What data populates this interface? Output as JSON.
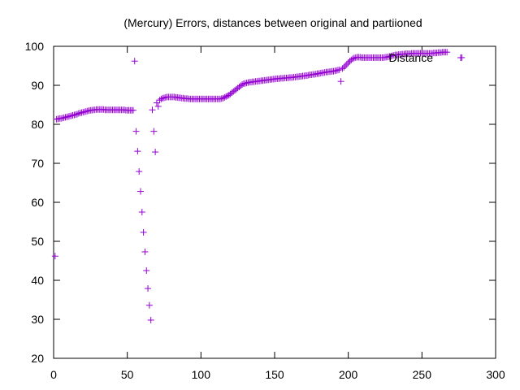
{
  "chart_data": {
    "type": "scatter",
    "title": "(Mercury) Errors, distances between original and partiioned",
    "xlabel": "",
    "ylabel": "",
    "xlim": [
      0,
      300
    ],
    "ylim": [
      20,
      100
    ],
    "xticks": [
      0,
      50,
      100,
      150,
      200,
      250,
      300
    ],
    "yticks": [
      20,
      30,
      40,
      50,
      60,
      70,
      80,
      90,
      100
    ],
    "legend_position": "top-right",
    "grid": false,
    "series": [
      {
        "name": "Distance",
        "color": "#9400d3",
        "marker": "plus",
        "points": [
          [
            1,
            46.2
          ],
          [
            2,
            81.3
          ],
          [
            3,
            81.4
          ],
          [
            4,
            81.5
          ],
          [
            5,
            81.5
          ],
          [
            6,
            81.6
          ],
          [
            7,
            81.7
          ],
          [
            8,
            81.8
          ],
          [
            9,
            81.9
          ],
          [
            10,
            82.0
          ],
          [
            11,
            82.1
          ],
          [
            12,
            82.2
          ],
          [
            13,
            82.3
          ],
          [
            14,
            82.4
          ],
          [
            15,
            82.5
          ],
          [
            16,
            82.6
          ],
          [
            17,
            82.8
          ],
          [
            18,
            82.9
          ],
          [
            19,
            83.0
          ],
          [
            20,
            83.1
          ],
          [
            21,
            83.2
          ],
          [
            22,
            83.3
          ],
          [
            23,
            83.4
          ],
          [
            24,
            83.5
          ],
          [
            25,
            83.6
          ],
          [
            26,
            83.6
          ],
          [
            27,
            83.7
          ],
          [
            28,
            83.7
          ],
          [
            29,
            83.8
          ],
          [
            30,
            83.8
          ],
          [
            31,
            83.8
          ],
          [
            32,
            83.8
          ],
          [
            33,
            83.8
          ],
          [
            34,
            83.8
          ],
          [
            35,
            83.7
          ],
          [
            36,
            83.7
          ],
          [
            37,
            83.7
          ],
          [
            38,
            83.7
          ],
          [
            39,
            83.7
          ],
          [
            40,
            83.7
          ],
          [
            41,
            83.7
          ],
          [
            42,
            83.7
          ],
          [
            43,
            83.7
          ],
          [
            44,
            83.7
          ],
          [
            45,
            83.7
          ],
          [
            46,
            83.7
          ],
          [
            47,
            83.7
          ],
          [
            48,
            83.7
          ],
          [
            49,
            83.6
          ],
          [
            50,
            83.6
          ],
          [
            51,
            83.6
          ],
          [
            52,
            83.6
          ],
          [
            53,
            83.6
          ],
          [
            54,
            83.6
          ],
          [
            55,
            96.2
          ],
          [
            56,
            78.2
          ],
          [
            57,
            73.1
          ],
          [
            58,
            67.9
          ],
          [
            59,
            62.8
          ],
          [
            60,
            57.5
          ],
          [
            61,
            52.3
          ],
          [
            62,
            47.3
          ],
          [
            63,
            42.5
          ],
          [
            64,
            37.9
          ],
          [
            65,
            33.6
          ],
          [
            66,
            29.8
          ],
          [
            67,
            83.7
          ],
          [
            68,
            78.2
          ],
          [
            69,
            72.9
          ],
          [
            70,
            85.5
          ],
          [
            71,
            84.6
          ],
          [
            72,
            86.2
          ],
          [
            73,
            86.5
          ],
          [
            74,
            86.7
          ],
          [
            75,
            86.8
          ],
          [
            76,
            86.9
          ],
          [
            77,
            87.0
          ],
          [
            78,
            87.0
          ],
          [
            79,
            87.0
          ],
          [
            80,
            87.0
          ],
          [
            81,
            87.0
          ],
          [
            82,
            87.0
          ],
          [
            83,
            86.9
          ],
          [
            84,
            86.9
          ],
          [
            85,
            86.8
          ],
          [
            86,
            86.8
          ],
          [
            87,
            86.7
          ],
          [
            88,
            86.7
          ],
          [
            89,
            86.6
          ],
          [
            90,
            86.6
          ],
          [
            91,
            86.6
          ],
          [
            92,
            86.5
          ],
          [
            93,
            86.5
          ],
          [
            94,
            86.5
          ],
          [
            95,
            86.5
          ],
          [
            96,
            86.5
          ],
          [
            97,
            86.5
          ],
          [
            98,
            86.5
          ],
          [
            99,
            86.5
          ],
          [
            100,
            86.5
          ],
          [
            101,
            86.5
          ],
          [
            102,
            86.5
          ],
          [
            103,
            86.5
          ],
          [
            104,
            86.5
          ],
          [
            105,
            86.5
          ],
          [
            106,
            86.5
          ],
          [
            107,
            86.5
          ],
          [
            108,
            86.5
          ],
          [
            109,
            86.5
          ],
          [
            110,
            86.5
          ],
          [
            111,
            86.5
          ],
          [
            112,
            86.5
          ],
          [
            113,
            86.5
          ],
          [
            114,
            86.6
          ],
          [
            115,
            86.7
          ],
          [
            116,
            86.9
          ],
          [
            117,
            87.1
          ],
          [
            118,
            87.3
          ],
          [
            119,
            87.5
          ],
          [
            120,
            87.8
          ],
          [
            121,
            88.1
          ],
          [
            122,
            88.4
          ],
          [
            123,
            88.7
          ],
          [
            124,
            89.0
          ],
          [
            125,
            89.3
          ],
          [
            126,
            89.6
          ],
          [
            127,
            89.9
          ],
          [
            128,
            90.2
          ],
          [
            129,
            90.4
          ],
          [
            130,
            90.5
          ],
          [
            131,
            90.6
          ],
          [
            132,
            90.7
          ],
          [
            133,
            90.8
          ],
          [
            134,
            90.8
          ],
          [
            135,
            90.9
          ],
          [
            136,
            90.9
          ],
          [
            137,
            91.0
          ],
          [
            138,
            91.0
          ],
          [
            139,
            91.1
          ],
          [
            140,
            91.1
          ],
          [
            141,
            91.2
          ],
          [
            142,
            91.2
          ],
          [
            143,
            91.3
          ],
          [
            144,
            91.3
          ],
          [
            145,
            91.4
          ],
          [
            146,
            91.4
          ],
          [
            147,
            91.5
          ],
          [
            148,
            91.5
          ],
          [
            149,
            91.6
          ],
          [
            150,
            91.6
          ],
          [
            151,
            91.7
          ],
          [
            152,
            91.7
          ],
          [
            153,
            91.7
          ],
          [
            154,
            91.8
          ],
          [
            155,
            91.8
          ],
          [
            156,
            91.8
          ],
          [
            157,
            91.9
          ],
          [
            158,
            91.9
          ],
          [
            159,
            91.9
          ],
          [
            160,
            92.0
          ],
          [
            161,
            92.0
          ],
          [
            162,
            92.0
          ],
          [
            163,
            92.1
          ],
          [
            164,
            92.1
          ],
          [
            165,
            92.2
          ],
          [
            166,
            92.2
          ],
          [
            167,
            92.3
          ],
          [
            168,
            92.3
          ],
          [
            169,
            92.4
          ],
          [
            170,
            92.4
          ],
          [
            171,
            92.5
          ],
          [
            172,
            92.5
          ],
          [
            173,
            92.6
          ],
          [
            174,
            92.7
          ],
          [
            175,
            92.7
          ],
          [
            176,
            92.8
          ],
          [
            177,
            92.8
          ],
          [
            178,
            92.9
          ],
          [
            179,
            93.0
          ],
          [
            180,
            93.0
          ],
          [
            181,
            93.1
          ],
          [
            182,
            93.2
          ],
          [
            183,
            93.2
          ],
          [
            184,
            93.3
          ],
          [
            185,
            93.4
          ],
          [
            186,
            93.4
          ],
          [
            187,
            93.5
          ],
          [
            188,
            93.5
          ],
          [
            189,
            93.6
          ],
          [
            190,
            93.6
          ],
          [
            191,
            93.7
          ],
          [
            192,
            93.8
          ],
          [
            193,
            93.9
          ],
          [
            194,
            94.0
          ],
          [
            195,
            91.0
          ],
          [
            196,
            94.3
          ],
          [
            197,
            94.6
          ],
          [
            198,
            95.0
          ],
          [
            199,
            95.4
          ],
          [
            200,
            95.8
          ],
          [
            201,
            96.2
          ],
          [
            202,
            96.5
          ],
          [
            203,
            96.8
          ],
          [
            204,
            97.0
          ],
          [
            205,
            97.1
          ],
          [
            206,
            97.2
          ],
          [
            207,
            97.2
          ],
          [
            208,
            97.2
          ],
          [
            209,
            97.1
          ],
          [
            210,
            97.1
          ],
          [
            211,
            97.1
          ],
          [
            212,
            97.1
          ],
          [
            213,
            97.1
          ],
          [
            214,
            97.1
          ],
          [
            215,
            97.1
          ],
          [
            216,
            97.1
          ],
          [
            217,
            97.1
          ],
          [
            218,
            97.1
          ],
          [
            219,
            97.1
          ],
          [
            220,
            97.1
          ],
          [
            221,
            97.1
          ],
          [
            222,
            97.1
          ],
          [
            223,
            97.1
          ],
          [
            224,
            97.1
          ],
          [
            225,
            97.2
          ],
          [
            226,
            97.2
          ],
          [
            227,
            97.3
          ],
          [
            228,
            97.4
          ],
          [
            229,
            97.5
          ],
          [
            230,
            97.6
          ],
          [
            231,
            97.7
          ],
          [
            232,
            97.8
          ],
          [
            233,
            97.8
          ],
          [
            234,
            97.9
          ],
          [
            235,
            97.9
          ],
          [
            236,
            98.0
          ],
          [
            237,
            98.0
          ],
          [
            238,
            98.0
          ],
          [
            239,
            98.1
          ],
          [
            240,
            98.1
          ],
          [
            241,
            98.1
          ],
          [
            242,
            98.1
          ],
          [
            243,
            98.2
          ],
          [
            244,
            98.2
          ],
          [
            245,
            98.2
          ],
          [
            246,
            98.2
          ],
          [
            247,
            98.2
          ],
          [
            248,
            98.2
          ],
          [
            249,
            98.2
          ],
          [
            250,
            98.2
          ],
          [
            251,
            98.2
          ],
          [
            252,
            98.2
          ],
          [
            253,
            98.2
          ],
          [
            254,
            98.2
          ],
          [
            255,
            98.2
          ],
          [
            256,
            98.2
          ],
          [
            257,
            98.2
          ],
          [
            258,
            98.3
          ],
          [
            259,
            98.3
          ],
          [
            260,
            98.3
          ],
          [
            261,
            98.4
          ],
          [
            262,
            98.4
          ],
          [
            263,
            98.4
          ],
          [
            264,
            98.5
          ],
          [
            265,
            98.5
          ],
          [
            266,
            98.5
          ],
          [
            267,
            98.5
          ],
          [
            277,
            97.1
          ]
        ]
      }
    ]
  }
}
